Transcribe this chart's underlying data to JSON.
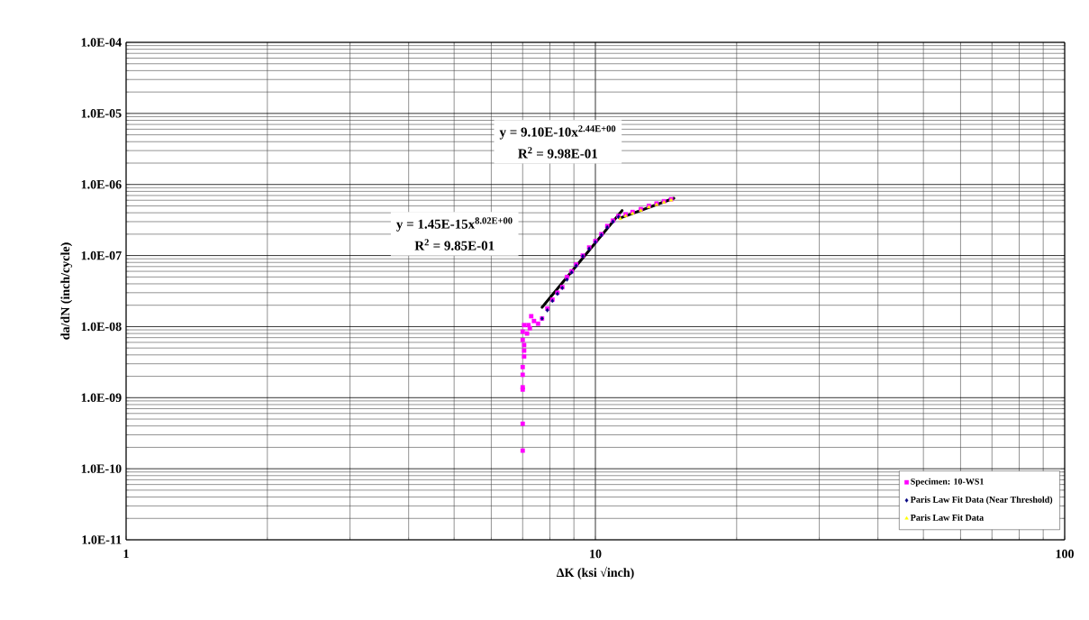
{
  "chart_data": {
    "type": "scatter",
    "xlabel": "ΔK (ksi √inch)",
    "ylabel": "da/dN (inch/cycle)",
    "log": "xy",
    "grid": true,
    "legend": "bottom right",
    "xlim": [
      1,
      100
    ],
    "xticks": [
      1,
      10,
      100
    ],
    "ylim": [
      1e-11,
      0.0001
    ],
    "yticks": [
      {
        "value": 1e-11,
        "label": "1.0E-11"
      },
      {
        "value": 1e-10,
        "label": "1.0E-10"
      },
      {
        "value": 1e-09,
        "label": "1.0E-09"
      },
      {
        "value": 1e-08,
        "label": "1.0E-08"
      },
      {
        "value": 1e-07,
        "label": "1.0E-07"
      },
      {
        "value": 1e-06,
        "label": "1.0E-06"
      },
      {
        "value": 1e-05,
        "label": "1.0E-05"
      },
      {
        "value": 0.0001,
        "label": "1.0E-04"
      }
    ],
    "annotations": [
      "y = 9.10E-10x$^{2.44E+00}$",
      "R$^{2}$ = 9.98E-01",
      "y = 1.45E-15x$^{8.02E+00}$",
      "R$^{2}$ = 9.85E-01"
    ],
    "series": [
      {
        "name": "Specimen: 10-WS1",
        "color": "#ff00ff",
        "marker": "square",
        "x": [
          7.0,
          7.0,
          7.0,
          7.0,
          7.0,
          7.0,
          7.05,
          7.05,
          7.05,
          7.0,
          7.0,
          7.05,
          7.15,
          7.2,
          7.25,
          7.3,
          7.4,
          7.55,
          7.7,
          7.9,
          8.1,
          8.3,
          8.5,
          8.7,
          8.9,
          9.1,
          9.4,
          9.7,
          10.0,
          10.3,
          10.6,
          10.9,
          11.2,
          11.6,
          12.0,
          12.5,
          13.0,
          13.5,
          14.0,
          14.5
        ],
        "values": [
          1.8e-10,
          4.3e-10,
          1.3e-09,
          1.4e-09,
          2.1e-09,
          2.7e-09,
          3.8e-09,
          4.6e-09,
          5.5e-09,
          6.5e-09,
          8.5e-09,
          1.05e-08,
          8e-09,
          1.05e-08,
          9.5e-09,
          1.4e-08,
          1.2e-08,
          1.1e-08,
          1.3e-08,
          1.8e-08,
          2.4e-08,
          3e-08,
          3.6e-08,
          5e-08,
          6e-08,
          7.5e-08,
          1e-07,
          1.3e-07,
          1.6e-07,
          2e-07,
          2.6e-07,
          3.1e-07,
          3.6e-07,
          3.8e-07,
          4.1e-07,
          4.5e-07,
          5e-07,
          5.4e-07,
          5.8e-07,
          6.2e-07
        ]
      },
      {
        "name": "Paris Law Fit Data (Near Threshold)",
        "color": "#000080",
        "marker": "diamond",
        "x": [
          7.7,
          7.9,
          8.1,
          8.3,
          8.5,
          8.7,
          8.9,
          9.1,
          9.4,
          9.7,
          10.0,
          10.3,
          10.6,
          10.9,
          11.2
        ],
        "values": [
          1.3e-08,
          1.7e-08,
          2.3e-08,
          2.9e-08,
          3.5e-08,
          4.6e-08,
          5.8e-08,
          7.2e-08,
          9.8e-08,
          1.25e-07,
          1.55e-07,
          1.95e-07,
          2.5e-07,
          3e-07,
          3.5e-07
        ]
      },
      {
        "name": "Paris Law Fit Data",
        "color": "#ffff00",
        "marker": "triangle",
        "x": [
          11.3,
          11.6,
          12.0,
          12.5,
          13.0,
          13.5,
          14.0,
          14.5
        ],
        "values": [
          3.3e-07,
          3.6e-07,
          3.9e-07,
          4.3e-07,
          4.8e-07,
          5.2e-07,
          5.6e-07,
          6e-07
        ]
      },
      {
        "type": "line",
        "color": "#000000",
        "x": [
          7.7,
          11.4
        ],
        "values": [
          1.87e-08,
          4.3e-07
        ]
      },
      {
        "type": "line",
        "color": "#000000",
        "x": [
          11.3,
          14.7
        ],
        "values": [
          3.38e-07,
          6.4e-07
        ]
      }
    ]
  }
}
